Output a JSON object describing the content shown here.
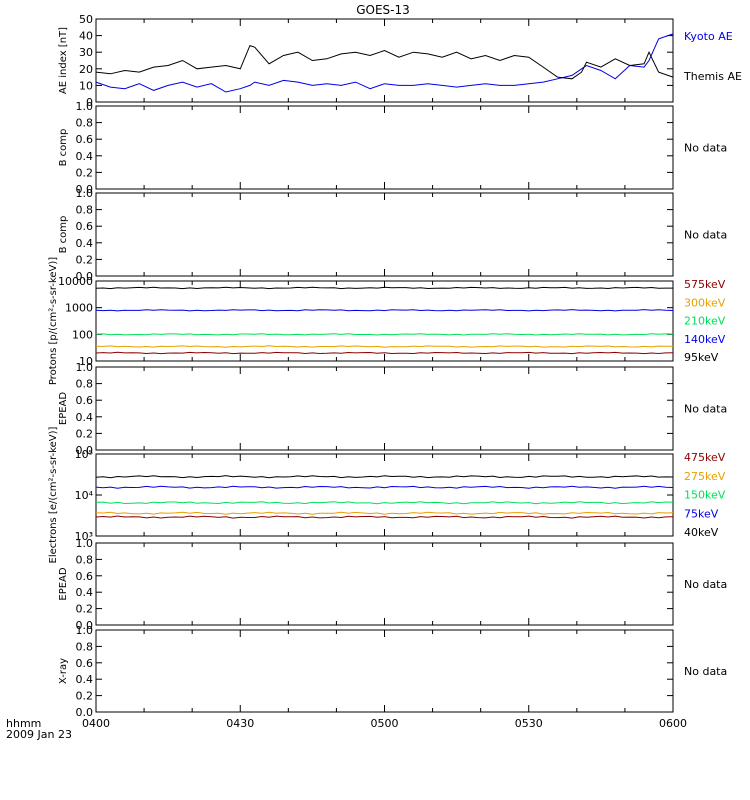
{
  "title": "GOES-13",
  "x_axis": {
    "ticks": [
      "0400",
      "0430",
      "0500",
      "0530",
      "0600"
    ],
    "corner_label": "hhmm",
    "date_label": "2009 Jan 23",
    "range_minutes": [
      0,
      120
    ]
  },
  "colors": {
    "black": "#000000",
    "blue": "#0000e6",
    "green": "#00e05a",
    "orange": "#e6a000",
    "darkred": "#8b0000"
  },
  "chart_data": [
    {
      "type": "line",
      "ylabel": "AE index [nT]",
      "ylim": [
        0,
        50
      ],
      "yticks": [
        "0",
        "10",
        "20",
        "30",
        "40",
        "50"
      ],
      "x": [
        0,
        3,
        6,
        9,
        12,
        15,
        18,
        21,
        24,
        27,
        30,
        32,
        33,
        36,
        39,
        42,
        45,
        48,
        51,
        54,
        57,
        60,
        63,
        66,
        69,
        72,
        75,
        78,
        81,
        84,
        87,
        90,
        93,
        96,
        99,
        101,
        102,
        105,
        108,
        111,
        114,
        115,
        117,
        120
      ],
      "series": [
        {
          "name": "Kyoto AE",
          "color": "#0000e6",
          "values": [
            12,
            9,
            8,
            11,
            7,
            10,
            12,
            9,
            11,
            6,
            8,
            10,
            12,
            10,
            13,
            12,
            10,
            11,
            10,
            12,
            8,
            11,
            10,
            10,
            11,
            10,
            9,
            10,
            11,
            10,
            10,
            11,
            12,
            14,
            16,
            20,
            22,
            19,
            14,
            22,
            21,
            25,
            38,
            41
          ]
        },
        {
          "name": "Themis AE",
          "color": "#000000",
          "values": [
            18,
            17,
            19,
            18,
            21,
            22,
            25,
            20,
            21,
            22,
            20,
            34,
            33,
            23,
            28,
            30,
            25,
            26,
            29,
            30,
            28,
            31,
            27,
            30,
            29,
            27,
            30,
            26,
            28,
            25,
            28,
            27,
            21,
            15,
            14,
            18,
            24,
            21,
            26,
            22,
            23,
            30,
            18,
            15
          ]
        }
      ]
    },
    {
      "type": "line",
      "ylabel": "B comp",
      "ylim": [
        0,
        1
      ],
      "yticks": [
        "0.0",
        "0.2",
        "0.4",
        "0.6",
        "0.8",
        "1.0"
      ],
      "note": "No data"
    },
    {
      "type": "line",
      "ylabel": "B comp",
      "ylim": [
        0,
        1
      ],
      "yticks": [
        "0.0",
        "0.2",
        "0.4",
        "0.6",
        "0.8",
        "1.0"
      ],
      "note": "No data"
    },
    {
      "type": "line",
      "scale": "log",
      "ylabel": "Protons [p/(cm²-s-sr-keV)]",
      "ylim": [
        10,
        10000
      ],
      "yticks": [
        "10",
        "100",
        "1000",
        "10000"
      ],
      "series": [
        {
          "name": "575keV",
          "color": "#8b0000",
          "value": 20
        },
        {
          "name": "300keV",
          "color": "#e6a000",
          "value": 35
        },
        {
          "name": "210keV",
          "color": "#00e05a",
          "value": 100
        },
        {
          "name": "140keV",
          "color": "#0000e6",
          "value": 800
        },
        {
          "name": "95keV",
          "color": "#000000",
          "value": 5500
        }
      ]
    },
    {
      "type": "line",
      "ylabel": "EPEAD",
      "ylim": [
        0,
        1
      ],
      "yticks": [
        "0.0",
        "0.2",
        "0.4",
        "0.6",
        "0.8",
        "1.0"
      ],
      "note": "No data"
    },
    {
      "type": "line",
      "scale": "log",
      "ylabel": "Electrons [e/(cm²-s-sr-keV)]",
      "ylim": [
        1000,
        100000
      ],
      "yticks": [
        "10³",
        "10⁴",
        "10⁵"
      ],
      "series": [
        {
          "name": "475keV",
          "color": "#8b0000",
          "value": 2900
        },
        {
          "name": "275keV",
          "color": "#e6a000",
          "value": 3600
        },
        {
          "name": "150keV",
          "color": "#00e05a",
          "value": 6500
        },
        {
          "name": "75keV",
          "color": "#0000e6",
          "value": 15500
        },
        {
          "name": "40keV",
          "color": "#000000",
          "value": 28000
        }
      ]
    },
    {
      "type": "line",
      "ylabel": "EPEAD",
      "ylim": [
        0,
        1
      ],
      "yticks": [
        "0.0",
        "0.2",
        "0.4",
        "0.6",
        "0.8",
        "1.0"
      ],
      "note": "No data"
    },
    {
      "type": "line",
      "ylabel": "X-ray",
      "ylim": [
        0,
        1
      ],
      "yticks": [
        "0.0",
        "0.2",
        "0.4",
        "0.6",
        "0.8",
        "1.0"
      ],
      "note": "No data"
    }
  ]
}
